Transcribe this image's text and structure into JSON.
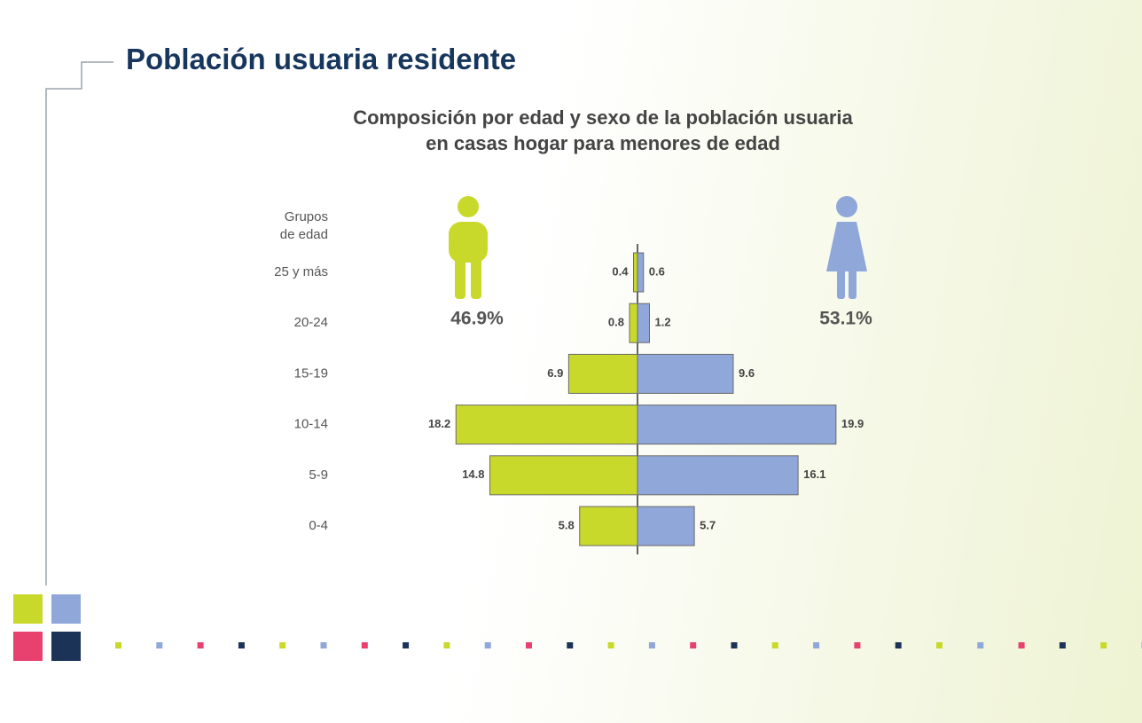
{
  "chart_data": {
    "type": "pyramid",
    "page_title": "Población usuaria residente",
    "title": "Composición por edad y sexo de la población usuaria\nen casas hogar para menores de edad",
    "ylabel": "Grupos\nde edad",
    "categories": [
      "25 y más",
      "20-24",
      "15-19",
      "10-14",
      "5-9",
      "0-4"
    ],
    "series": [
      {
        "color": "#c9d92b",
        "side": "left",
        "values": [
          0.4,
          0.8,
          6.9,
          18.2,
          14.8,
          5.8
        ],
        "total": 46.9,
        "total_label": "46.9%"
      },
      {
        "color": "#8fa7d9",
        "side": "right",
        "values": [
          0.6,
          1.2,
          9.6,
          19.9,
          16.1,
          5.7
        ],
        "total": 53.1,
        "total_label": "53.1%"
      }
    ]
  }
}
